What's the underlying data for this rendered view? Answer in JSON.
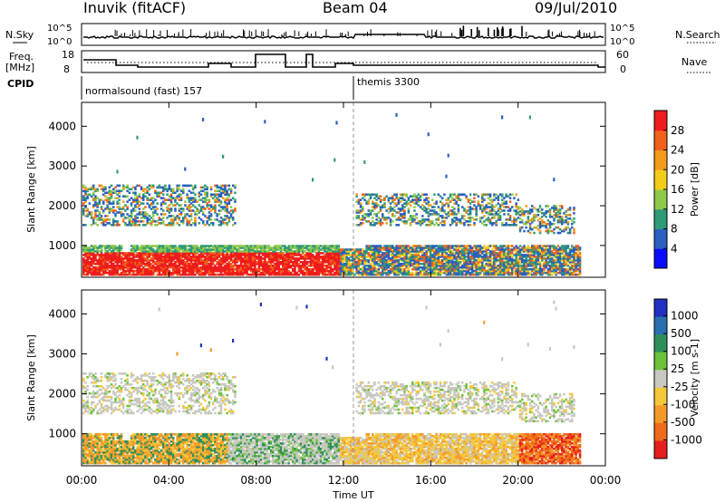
{
  "header": {
    "station": "Inuvik (fitACF)",
    "beam": "Beam 04",
    "date": "09/Jul/2010"
  },
  "panels": {
    "nsky": {
      "left_label": "N.Sky",
      "left_ticks": [
        "10^5",
        "10^0"
      ],
      "right_ticks": [
        "10^5",
        "10^0"
      ],
      "right_label": "N.Search"
    },
    "freq": {
      "left_label_1": "Freq.",
      "left_label_2": "[MHz]",
      "left_ticks": [
        "18",
        "8"
      ],
      "right_ticks": [
        "60",
        "0"
      ],
      "right_label": "Nave"
    },
    "cpid": {
      "label": "CPID",
      "segments": [
        {
          "label": "normalsound (fast) 157",
          "start_hour": 0
        },
        {
          "label": "themis 3300",
          "start_hour": 12
        }
      ]
    }
  },
  "chart_data": [
    {
      "type": "heatmap",
      "name": "power",
      "ylabel": "Slant Range [km]",
      "yticks": [
        1000,
        2000,
        3000,
        4000
      ],
      "ylim": [
        200,
        4600
      ],
      "xlim": [
        0,
        24
      ],
      "colorbar_label": "Power [dB]",
      "colorbar_ticks": [
        "4",
        "8",
        "12",
        "16",
        "20",
        "24",
        "28"
      ],
      "colors": [
        "#0a0aff",
        "#2a5fc0",
        "#2f9a77",
        "#8fc94a",
        "#f3cc1a",
        "#f49a1a",
        "#f2611a",
        "#ee1c1c"
      ]
    },
    {
      "type": "heatmap",
      "name": "velocity",
      "ylabel": "Slant Range [km]",
      "yticks": [
        1000,
        2000,
        3000,
        4000
      ],
      "ylim": [
        200,
        4600
      ],
      "xlim": [
        0,
        24
      ],
      "xlabel": "Time UT",
      "xticks": [
        "00:00",
        "04:00",
        "08:00",
        "12:00",
        "16:00",
        "20:00",
        "00:00"
      ],
      "colorbar_label": "Velocity [m s-1]",
      "colorbar_ticks": [
        "1000",
        "500",
        "100",
        "25",
        "-25",
        "-100",
        "-500",
        "-1000"
      ],
      "colors": [
        "#2030c0",
        "#2a6fb0",
        "#2f8f5a",
        "#6cc23a",
        "#c8c8c0",
        "#f5c83a",
        "#f59a2a",
        "#ef6a1a",
        "#e61d1d"
      ]
    }
  ]
}
